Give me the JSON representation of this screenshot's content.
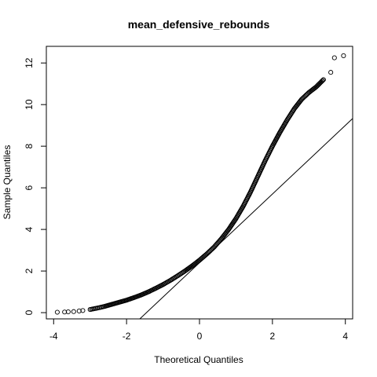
{
  "chart_data": {
    "type": "scatter",
    "title": "mean_defensive_rebounds",
    "xlabel": "Theoretical Quantiles",
    "ylabel": "Sample Quantiles",
    "xlim": [
      -4.2,
      4.2
    ],
    "ylim": [
      -0.3,
      12.8
    ],
    "xticks": [
      -4,
      -2,
      0,
      2,
      4
    ],
    "yticks": [
      0,
      2,
      4,
      6,
      8,
      10,
      12
    ],
    "grid": false,
    "legend": "none",
    "reference_line": {
      "intercept": 2.4,
      "slope": 1.65
    },
    "quantile_curve": [
      [
        -3.9,
        0.02
      ],
      [
        -3.7,
        0.03
      ],
      [
        -3.6,
        0.04
      ],
      [
        -3.45,
        0.05
      ],
      [
        -3.3,
        0.08
      ],
      [
        -3.2,
        0.1
      ],
      [
        -3.0,
        0.15
      ],
      [
        -2.8,
        0.22
      ],
      [
        -2.6,
        0.3
      ],
      [
        -2.4,
        0.4
      ],
      [
        -2.2,
        0.5
      ],
      [
        -2.0,
        0.6
      ],
      [
        -1.8,
        0.72
      ],
      [
        -1.6,
        0.85
      ],
      [
        -1.4,
        1.0
      ],
      [
        -1.2,
        1.17
      ],
      [
        -1.0,
        1.35
      ],
      [
        -0.8,
        1.55
      ],
      [
        -0.6,
        1.77
      ],
      [
        -0.4,
        2.0
      ],
      [
        -0.2,
        2.25
      ],
      [
        0.0,
        2.52
      ],
      [
        0.2,
        2.82
      ],
      [
        0.4,
        3.15
      ],
      [
        0.6,
        3.55
      ],
      [
        0.8,
        4.0
      ],
      [
        1.0,
        4.52
      ],
      [
        1.2,
        5.12
      ],
      [
        1.4,
        5.8
      ],
      [
        1.6,
        6.55
      ],
      [
        1.8,
        7.3
      ],
      [
        2.0,
        8.0
      ],
      [
        2.2,
        8.65
      ],
      [
        2.4,
        9.25
      ],
      [
        2.6,
        9.8
      ],
      [
        2.8,
        10.25
      ],
      [
        3.0,
        10.58
      ],
      [
        3.2,
        10.85
      ],
      [
        3.4,
        11.2
      ],
      [
        3.6,
        11.55
      ],
      [
        3.7,
        12.25
      ],
      [
        3.95,
        12.35
      ]
    ]
  }
}
